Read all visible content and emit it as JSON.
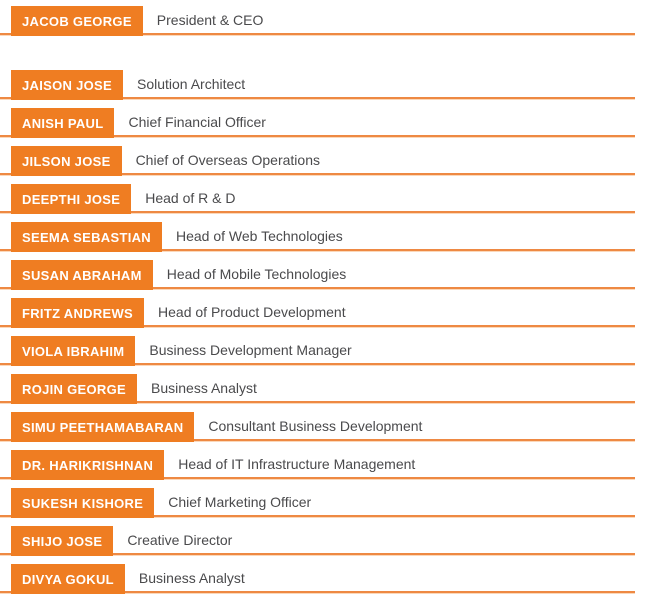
{
  "colors": {
    "badge": "#EF7D22",
    "badge_text": "#FFFFFF",
    "line": "#EE8943",
    "line_light": "#FBD8BA",
    "title_text": "#4A4A4C",
    "background": "#FFFFFF"
  },
  "team": {
    "members": [
      {
        "name": "JACOB GEORGE",
        "title": "President & CEO",
        "level": "ceo"
      },
      {
        "name": "JAISON JOSE",
        "title": "Solution Architect",
        "level": "staff"
      },
      {
        "name": "ANISH PAUL",
        "title": "Chief Financial Officer",
        "level": "staff"
      },
      {
        "name": "JILSON JOSE",
        "title": "Chief of Overseas Operations",
        "level": "staff"
      },
      {
        "name": "DEEPTHI JOSE",
        "title": "Head of R & D",
        "level": "staff"
      },
      {
        "name": "SEEMA SEBASTIAN",
        "title": "Head of Web Technologies",
        "level": "staff"
      },
      {
        "name": "SUSAN ABRAHAM",
        "title": "Head of Mobile Technologies",
        "level": "staff"
      },
      {
        "name": "FRITZ ANDREWS",
        "title": "Head of Product Development",
        "level": "staff"
      },
      {
        "name": "VIOLA IBRAHIM",
        "title": "Business Development Manager",
        "level": "staff"
      },
      {
        "name": "ROJIN GEORGE",
        "title": "Business Analyst",
        "level": "staff"
      },
      {
        "name": "SIMU PEETHAMABARAN",
        "title": "Consultant Business Development",
        "level": "staff"
      },
      {
        "name": "DR. HARIKRISHNAN",
        "title": "Head of IT Infrastructure Management",
        "level": "staff"
      },
      {
        "name": "SUKESH KISHORE",
        "title": "Chief Marketing Officer",
        "level": "staff"
      },
      {
        "name": "SHIJO JOSE",
        "title": "Creative Director",
        "level": "staff"
      },
      {
        "name": "DIVYA GOKUL",
        "title": "Business Analyst",
        "level": "staff"
      }
    ]
  }
}
